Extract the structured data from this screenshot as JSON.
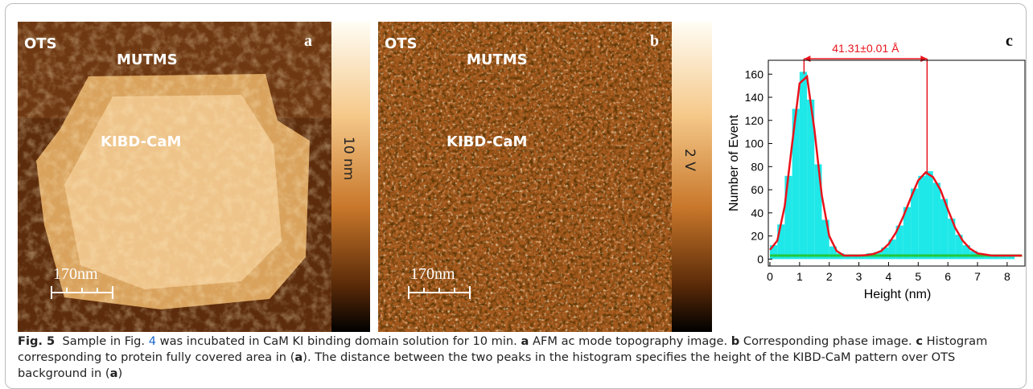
{
  "panels": {
    "a": {
      "label": "a",
      "ots": "OTS",
      "mutms": "MUTMS",
      "kibd": "KIBD-CaM",
      "scale": "170nm",
      "colorbar": "10 nm"
    },
    "b": {
      "label": "b",
      "ots": "OTS",
      "mutms": "MUTMS",
      "kibd": "KIBD-CaM",
      "scale": "170nm",
      "colorbar": "2 V"
    }
  },
  "chart_data": {
    "type": "histogram",
    "panel_label": "c",
    "xlabel": "Height (nm)",
    "ylabel": "Number of Event",
    "bins": [
      0,
      0.25,
      0.5,
      0.75,
      1,
      1.25,
      1.5,
      1.75,
      2,
      2.25,
      2.5,
      2.75,
      3,
      3.25,
      3.5,
      3.75,
      4,
      4.25,
      4.5,
      4.75,
      5,
      5.25,
      5.5,
      5.75,
      6,
      6.25,
      6.5,
      6.75,
      7,
      7.25,
      7.5,
      7.75,
      8,
      8.25
    ],
    "values": [
      12,
      30,
      72,
      130,
      162,
      138,
      82,
      34,
      11,
      5,
      4,
      4,
      4,
      5,
      6,
      10,
      17,
      29,
      45,
      61,
      72,
      76,
      66,
      52,
      35,
      21,
      12,
      7,
      4,
      3,
      3,
      3,
      3
    ],
    "color": "#1fe8e8",
    "fit": {
      "color": "#e8141c",
      "x": [
        0,
        0.25,
        0.5,
        0.75,
        1,
        1.25,
        1.5,
        1.75,
        2,
        2.25,
        2.5,
        2.75,
        3,
        3.25,
        3.5,
        3.75,
        4,
        4.25,
        4.5,
        4.75,
        5,
        5.25,
        5.5,
        5.75,
        6,
        6.25,
        6.5,
        6.75,
        7,
        7.25,
        7.5,
        7.75,
        8,
        8.25,
        8.5
      ],
      "values": [
        8,
        16,
        46,
        100,
        152,
        158,
        112,
        55,
        20,
        7,
        3,
        3,
        3,
        3.5,
        4.5,
        7,
        13,
        23,
        37,
        53,
        68,
        75,
        71,
        60,
        43,
        27,
        16,
        9,
        5,
        4,
        3,
        3,
        3,
        3,
        3
      ]
    },
    "baseline": {
      "color": "#22c83a",
      "x": [
        0,
        8.5
      ],
      "values": [
        3,
        3
      ]
    },
    "annotation": {
      "text": "41.31±0.01 Å",
      "x": [
        1.15,
        5.3
      ],
      "y": 165,
      "peaks": [
        160,
        75
      ],
      "color": "#e8141c"
    },
    "xlim": [
      0,
      8.6
    ],
    "ylim": [
      -6,
      172
    ],
    "xticks": [
      0,
      1,
      2,
      3,
      4,
      5,
      6,
      7,
      8
    ],
    "yticks": [
      0,
      20,
      40,
      60,
      80,
      100,
      120,
      140,
      160
    ]
  },
  "caption": {
    "segments": [
      "Fig. 5",
      "Sample in Fig. ",
      "4",
      " was incubated in CaM KI binding domain solution for 10 min. ",
      "a",
      " AFM ac mode topography image. ",
      "b",
      " Corresponding phase image. ",
      "c",
      " Histogram corresponding to protein fully covered area in (",
      "a",
      "). The distance between the two peaks in the histogram specifies the height of the KIBD-CaM pattern over OTS background in (",
      "a",
      ")"
    ]
  }
}
